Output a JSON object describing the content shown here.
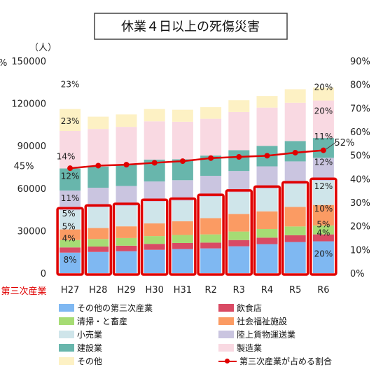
{
  "chart_data": {
    "type": "bar",
    "title": "休業４日以上の死傷災害",
    "left_axis_unit": "（人）",
    "left_axis_pct_fragment": "%",
    "ylim": [
      0,
      150000
    ],
    "y_ticks": [
      "0",
      "30000",
      "60000",
      "90000",
      "120000",
      "150000"
    ],
    "y2lim": [
      0,
      90
    ],
    "y2_ticks": [
      "0%",
      "10%",
      "20%",
      "30%",
      "40%",
      "50%",
      "60%",
      "70%",
      "80%",
      "90%"
    ],
    "categories": [
      "H27",
      "H28",
      "H29",
      "H30",
      "H31",
      "R2",
      "R3",
      "R4",
      "R5",
      "R6"
    ],
    "series": [
      {
        "name": "その他の第三次産業",
        "color": "#7fb8f2",
        "values": [
          14500,
          15000,
          15500,
          16500,
          17000,
          17500,
          19000,
          20500,
          22000,
          22500
        ]
      },
      {
        "name": "飲食店",
        "color": "#d94a64",
        "values": [
          3700,
          3800,
          3900,
          4200,
          4300,
          4100,
          4400,
          4600,
          4800,
          4900
        ]
      },
      {
        "name": "清掃・と畜産",
        "color": "#a6dc74",
        "values": [
          5200,
          5300,
          5400,
          5500,
          5700,
          5800,
          6000,
          6100,
          6200,
          6300
        ]
      },
      {
        "name": "社会福祉施設",
        "color": "#fb9b63",
        "values": [
          7500,
          7800,
          8300,
          9000,
          9700,
          11500,
          12400,
          12500,
          13800,
          14500
        ]
      },
      {
        "name": "小売業",
        "color": "#cfe5ea",
        "values": [
          13500,
          14500,
          14400,
          15200,
          14500,
          15000,
          15200,
          16000,
          16000,
          17000
        ]
      },
      {
        "name": "陸上貨物運送業",
        "color": "#cac5e0",
        "values": [
          14000,
          14000,
          14100,
          14400,
          14500,
          14900,
          15200,
          15800,
          16200,
          16300
        ]
      },
      {
        "name": "建設業",
        "color": "#68b6ac",
        "values": [
          15600,
          15000,
          15300,
          15500,
          14800,
          14300,
          14700,
          14500,
          14400,
          14000
        ]
      },
      {
        "name": "製造業",
        "color": "#f9d9e2",
        "values": [
          26500,
          26500,
          26500,
          27000,
          26500,
          26000,
          27000,
          27000,
          27000,
          26500
        ]
      },
      {
        "name": "その他",
        "color": "#fdf1c4",
        "values": [
          15500,
          8700,
          8800,
          8700,
          8500,
          8200,
          8300,
          8200,
          9600,
          9200
        ]
      }
    ],
    "line_series": {
      "name": "第三次産業が占める割合",
      "color": "#e00000",
      "values": [
        44.5,
        45.6,
        46.0,
        46.8,
        47.5,
        48.8,
        49.3,
        49.8,
        51.1,
        52.1
      ]
    },
    "highlight_label": "第三次産業",
    "annotations": [
      {
        "text": "45%",
        "cat": 0,
        "pct": 45,
        "dx": -66,
        "dy": -2,
        "size": 13
      },
      {
        "text": "52%",
        "cat": 9,
        "pct": 52,
        "dx": 30,
        "dy": -12,
        "size": 13
      },
      {
        "text": "23%",
        "cat": 0,
        "y": 134000,
        "dx": 0,
        "size": 12
      },
      {
        "text": "23%",
        "cat": 0,
        "y": 108000,
        "dx": 0,
        "size": 12
      },
      {
        "text": "14%",
        "cat": 0,
        "y": 83000,
        "dx": -6,
        "size": 12
      },
      {
        "text": "12%",
        "cat": 0,
        "y": 69000,
        "dx": 0,
        "size": 12
      },
      {
        "text": "11%",
        "cat": 0,
        "y": 53500,
        "dx": 0,
        "size": 12
      },
      {
        "text": "5%",
        "cat": 0,
        "y": 42500,
        "dx": -2,
        "size": 12
      },
      {
        "text": "5%",
        "cat": 0,
        "y": 33500,
        "dx": -2,
        "size": 12
      },
      {
        "text": "4%",
        "cat": 0,
        "y": 25000,
        "dx": -2,
        "size": 12
      },
      {
        "text": "8%",
        "cat": 0,
        "y": 10000,
        "dx": 0,
        "size": 12
      },
      {
        "text": "20%",
        "cat": 9,
        "y": 132000,
        "dx": 0,
        "size": 12
      },
      {
        "text": "20%",
        "cat": 9,
        "y": 115000,
        "dx": 0,
        "size": 12
      },
      {
        "text": "11%",
        "cat": 9,
        "y": 97000,
        "dx": 0,
        "size": 12
      },
      {
        "text": "12%",
        "cat": 9,
        "y": 79000,
        "dx": 0,
        "size": 12
      },
      {
        "text": "12%",
        "cat": 9,
        "y": 62000,
        "dx": 0,
        "size": 12
      },
      {
        "text": "10%",
        "cat": 9,
        "y": 46000,
        "dx": 0,
        "size": 12
      },
      {
        "text": "5%",
        "cat": 9,
        "y": 35000,
        "dx": 0,
        "size": 12
      },
      {
        "text": "4%",
        "cat": 9,
        "y": 29000,
        "dx": 0,
        "size": 12
      },
      {
        "text": "20%",
        "cat": 9,
        "y": 14000,
        "dx": 0,
        "size": 12
      }
    ],
    "legend_layout": "two-column-bottom"
  }
}
